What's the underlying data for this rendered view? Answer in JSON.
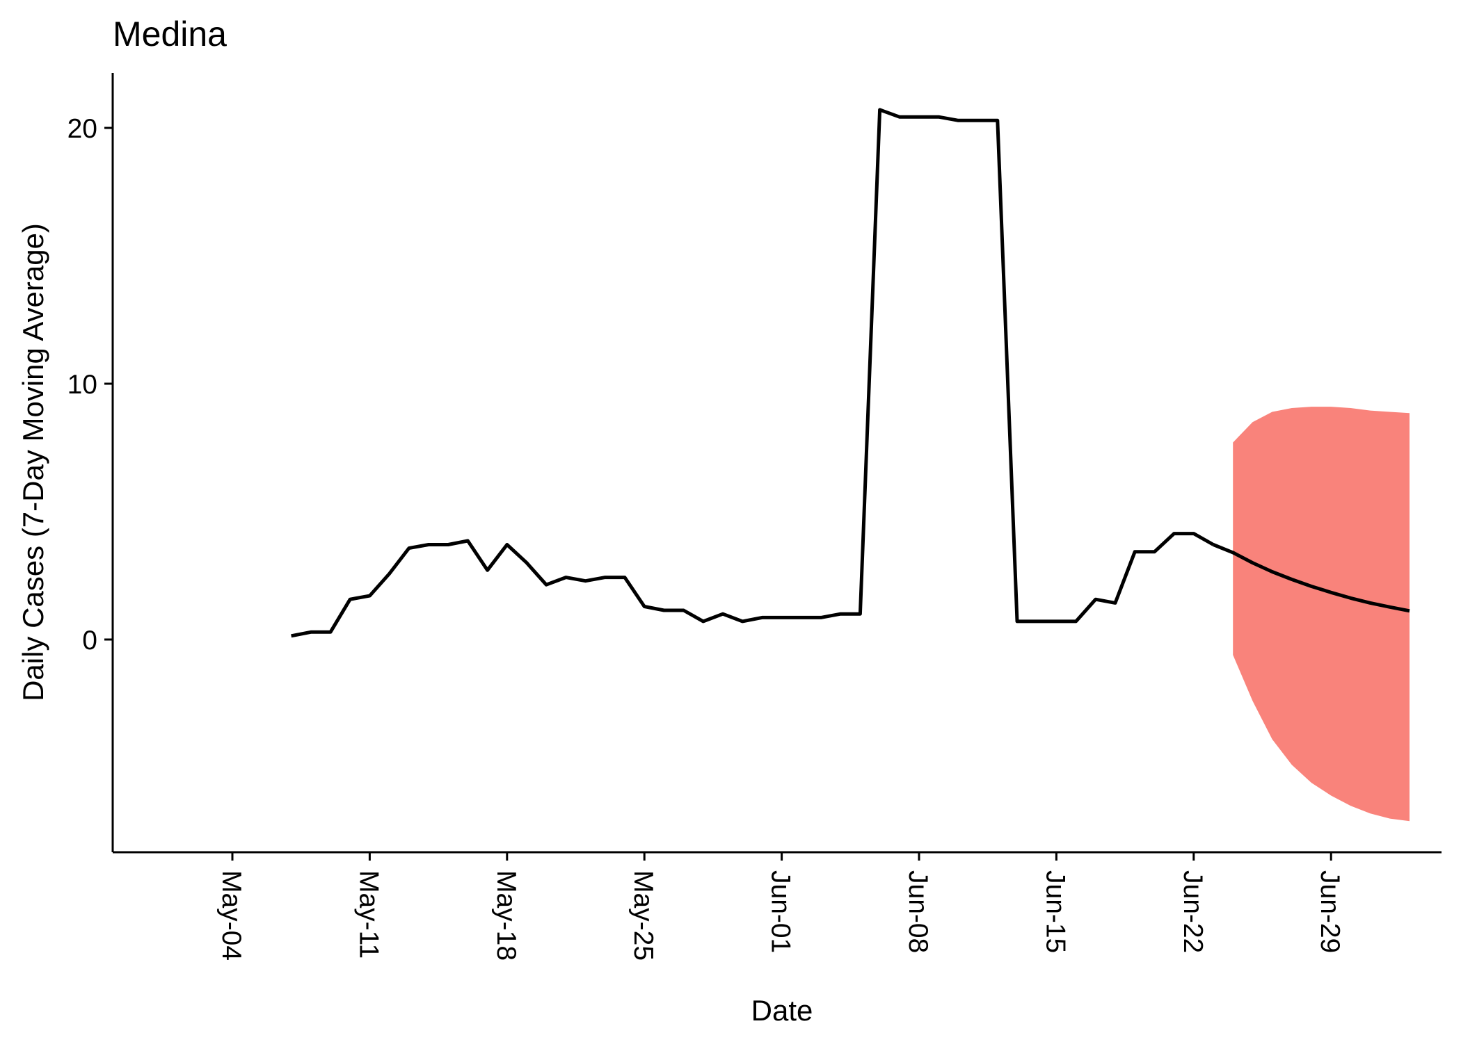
{
  "chart_data": {
    "type": "line",
    "title": "Medina",
    "xlabel": "Date",
    "ylabel": "Daily Cases (7-Day Moving Average)",
    "x_ticks": [
      "May-04",
      "May-11",
      "May-18",
      "May-25",
      "Jun-01",
      "Jun-08",
      "Jun-15",
      "Jun-22",
      "Jun-29"
    ],
    "y_ticks": [
      0,
      10,
      20
    ],
    "ylim": [
      -8.4,
      22.1
    ],
    "xlim": [
      "2020-05-04",
      "2020-07-06"
    ],
    "grid": false,
    "legend": "none",
    "series": [
      {
        "type": "line",
        "color": "#000000",
        "x": [
          "2020-05-07",
          "2020-05-08",
          "2020-05-09",
          "2020-05-10",
          "2020-05-11",
          "2020-05-12",
          "2020-05-13",
          "2020-05-14",
          "2020-05-15",
          "2020-05-16",
          "2020-05-17",
          "2020-05-18",
          "2020-05-19",
          "2020-05-20",
          "2020-05-21",
          "2020-05-22",
          "2020-05-23",
          "2020-05-24",
          "2020-05-25",
          "2020-05-26",
          "2020-05-27",
          "2020-05-28",
          "2020-05-29",
          "2020-05-30",
          "2020-05-31",
          "2020-06-01",
          "2020-06-02",
          "2020-06-03",
          "2020-06-04",
          "2020-06-05",
          "2020-06-06",
          "2020-06-07",
          "2020-06-08",
          "2020-06-09",
          "2020-06-10",
          "2020-06-11",
          "2020-06-12",
          "2020-06-13",
          "2020-06-14",
          "2020-06-15",
          "2020-06-16",
          "2020-06-17",
          "2020-06-18",
          "2020-06-19",
          "2020-06-20",
          "2020-06-21",
          "2020-06-22",
          "2020-06-23"
        ],
        "y": [
          0.14,
          0.29,
          0.29,
          1.57,
          1.71,
          2.57,
          3.57,
          3.71,
          3.71,
          3.86,
          2.71,
          3.71,
          3.0,
          2.14,
          2.43,
          2.29,
          2.43,
          2.43,
          1.29,
          1.14,
          1.14,
          0.71,
          1.0,
          0.71,
          0.86,
          0.86,
          0.86,
          0.86,
          1.0,
          1.0,
          20.71,
          20.43,
          20.43,
          20.43,
          20.29,
          20.29,
          20.29,
          0.71,
          0.71,
          0.71,
          0.71,
          1.57,
          1.43,
          3.43,
          3.43,
          4.14,
          4.14,
          3.71
        ]
      },
      {
        "type": "line",
        "color": "#000000",
        "label": "forecast",
        "x": [
          "2020-06-24",
          "2020-06-25",
          "2020-06-26",
          "2020-06-27",
          "2020-06-28",
          "2020-06-29",
          "2020-06-30",
          "2020-07-01",
          "2020-07-02",
          "2020-07-03"
        ],
        "y": [
          3.4,
          3.0,
          2.65,
          2.35,
          2.08,
          1.84,
          1.62,
          1.43,
          1.27,
          1.12
        ]
      },
      {
        "type": "area_band",
        "color": "#F8766D",
        "x": [
          "2020-06-24",
          "2020-06-25",
          "2020-06-26",
          "2020-06-27",
          "2020-06-28",
          "2020-06-29",
          "2020-06-30",
          "2020-07-01",
          "2020-07-02",
          "2020-07-03"
        ],
        "upper": [
          7.7,
          8.5,
          8.9,
          9.05,
          9.1,
          9.1,
          9.05,
          8.95,
          8.9,
          8.85
        ],
        "lower": [
          -0.6,
          -2.4,
          -3.9,
          -4.9,
          -5.6,
          -6.1,
          -6.5,
          -6.8,
          -7.0,
          -7.1
        ]
      }
    ]
  }
}
